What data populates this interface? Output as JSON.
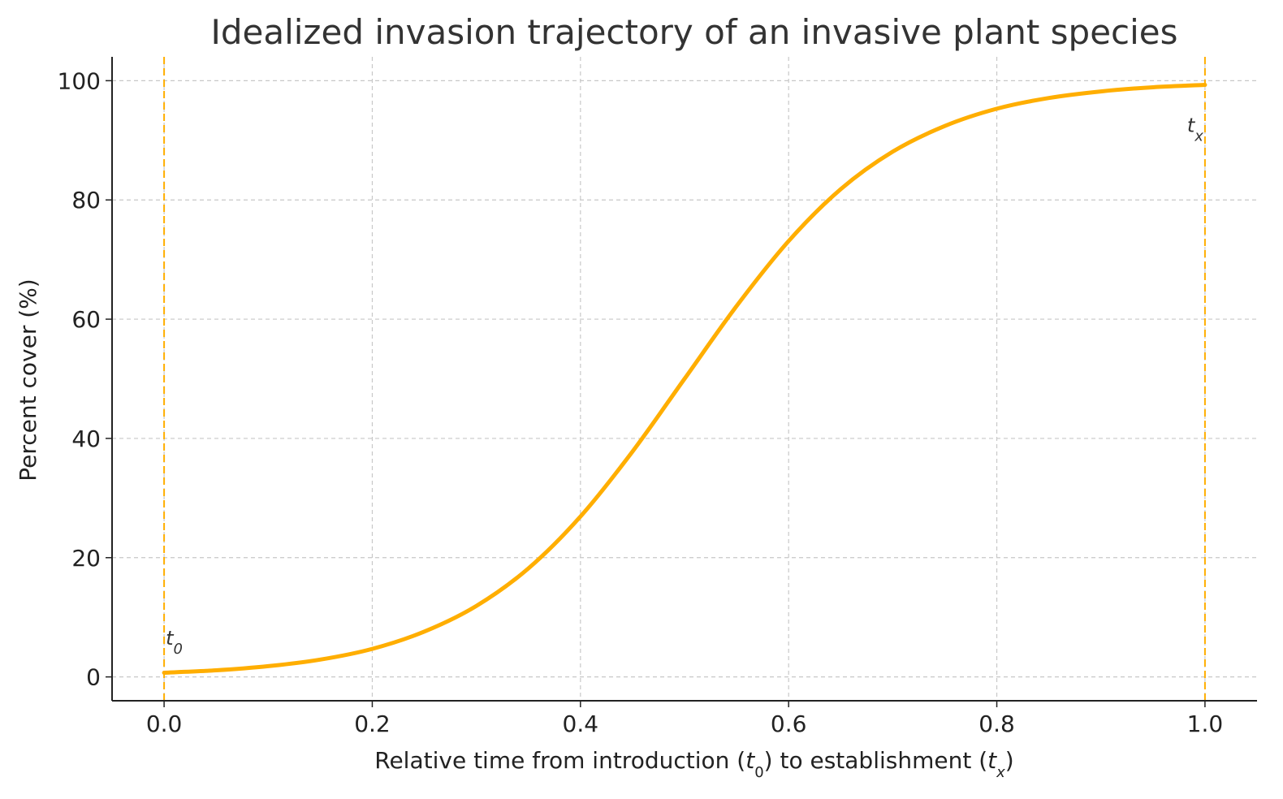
{
  "chart_data": {
    "type": "line",
    "title": "Idealized invasion trajectory of an invasive plant species",
    "xlabel": {
      "prefix": "Relative time from introduction (",
      "t0_base": "t",
      "t0_sub": "0",
      "middle": ") to establishment (",
      "tx_base": "t",
      "tx_sub": "x",
      "suffix": ")"
    },
    "ylabel": "Percent cover (%)",
    "xlim": [
      -0.05,
      1.05
    ],
    "ylim": [
      -4,
      104
    ],
    "xticks": [
      {
        "value": 0.0,
        "label": "0.0"
      },
      {
        "value": 0.2,
        "label": "0.2"
      },
      {
        "value": 0.4,
        "label": "0.4"
      },
      {
        "value": 0.6,
        "label": "0.6"
      },
      {
        "value": 0.8,
        "label": "0.8"
      },
      {
        "value": 1.0,
        "label": "1.0"
      }
    ],
    "yticks": [
      {
        "value": 0,
        "label": "0"
      },
      {
        "value": 20,
        "label": "20"
      },
      {
        "value": 40,
        "label": "40"
      },
      {
        "value": 60,
        "label": "60"
      },
      {
        "value": 80,
        "label": "80"
      },
      {
        "value": 100,
        "label": "100"
      }
    ],
    "grid": true,
    "series": [
      {
        "color": "#ffae00",
        "x": [
          0.0,
          0.05,
          0.1,
          0.15,
          0.2,
          0.25,
          0.3,
          0.35,
          0.4,
          0.45,
          0.5,
          0.55,
          0.6,
          0.65,
          0.7,
          0.75,
          0.8,
          0.85,
          0.9,
          0.95,
          1.0
        ],
        "y": [
          0.7,
          1.1,
          1.8,
          2.9,
          4.7,
          7.6,
          11.9,
          18.2,
          26.9,
          37.8,
          50.0,
          62.2,
          73.1,
          81.8,
          88.1,
          92.4,
          95.3,
          97.1,
          98.2,
          98.9,
          99.3
        ]
      }
    ],
    "vlines": [
      {
        "x": 0.0,
        "color": "#ffae00",
        "style": "dashed"
      },
      {
        "x": 1.0,
        "color": "#ffae00",
        "style": "dashed"
      }
    ],
    "annotations": [
      {
        "id": "t0",
        "base": "t",
        "sub": "0",
        "x": 0.0,
        "y": 6.5,
        "anchor": "start"
      },
      {
        "id": "tx",
        "base": "t",
        "sub": "x",
        "x": 1.0,
        "y": 92.5,
        "anchor": "end"
      }
    ]
  }
}
